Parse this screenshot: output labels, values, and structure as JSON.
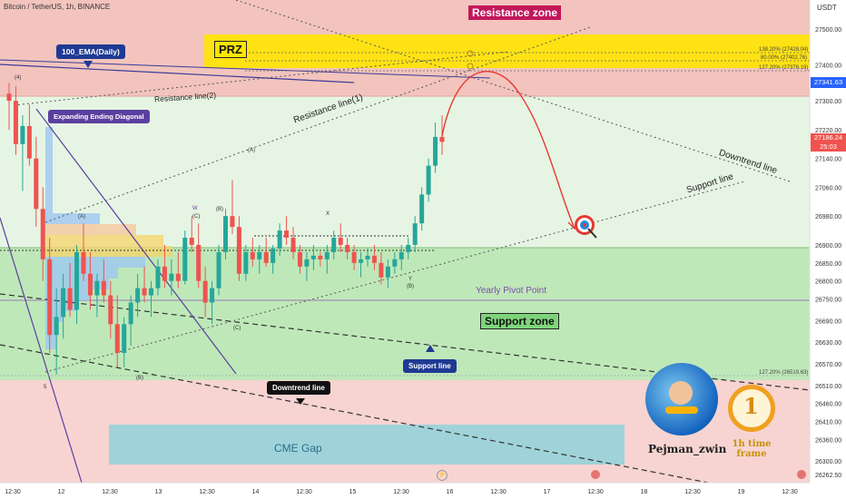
{
  "header": {
    "symbol_label": "Bitcoin / TetherUS, 1h, BINANCE"
  },
  "axis": {
    "currency": "USDT",
    "current_price": "27341.63",
    "last_price": "27186.24",
    "countdown": "25:03"
  },
  "colors": {
    "up": "#26a69a",
    "down": "#ef5350",
    "resistance_zone": "#f2c4bd",
    "support_zone": "#bfe8b9",
    "prz": "#ffe600",
    "cme_gap": "#9fd3d9",
    "label_dark": "#1f3a93",
    "price_marker": "#2962ff"
  },
  "annotations": {
    "resistance_zone": "Resistance zone",
    "prz": "PRZ",
    "ema": "100_EMA(Daily)",
    "resistance_line_2": "Resistance line(2)",
    "resistance_line_1": "Resistance line(1)",
    "expanding_diagonal": "Expanding Ending Diagonal",
    "downtrend_line_upper": "Downtrend line",
    "support_line_upper": "Support line",
    "yearly_pivot": "Yearly Pivot Point",
    "support_zone": "Support zone",
    "support_line_lower": "Support line",
    "downtrend_line_lower": "Downtrend line",
    "cme_gap": "CME Gap",
    "fib_1": "138.20% (27428.04)",
    "fib_2": "80.00% (27402.76)",
    "fib_3": "127.20% (27378.19)",
    "fib_4": "127.20% (26519.63)",
    "author": "Pejman_zwin",
    "timeframe": "1h time frame",
    "wave_4": "(4)",
    "wave_a1": "(A)",
    "wave_b1": "(B)",
    "wave_c1": "(C)",
    "wave_w": "W",
    "wave_x": "X",
    "wave_y": "Y",
    "wave_a2": "(A)",
    "wave_b2": "(B)",
    "wave_c2": "(C)",
    "wave_5": "5",
    "wave_b3": "(B)"
  },
  "chart_data": {
    "type": "candlestick",
    "title": "Bitcoin / TetherUS, 1h, BINANCE",
    "ylabel": "USDT",
    "ylim": [
      26240,
      27580
    ],
    "y_ticks": [
      27500,
      27400,
      27300,
      27220,
      27140,
      27060,
      26980,
      26900,
      26850,
      26800,
      26750,
      26690,
      26630,
      26570,
      26510,
      26460,
      26410,
      26360,
      26300,
      26262.5
    ],
    "y_tick_labels": [
      "27500.00",
      "27400.00",
      "27300.00",
      "27220.00",
      "27140.00",
      "27060.00",
      "26980.00",
      "26900.00",
      "26850.00",
      "26800.00",
      "26750.00",
      "26690.00",
      "26630.00",
      "26570.00",
      "26510.00",
      "26460.00",
      "26410.00",
      "26360.00",
      "26300.00",
      "26262.50"
    ],
    "x_ticks": [
      "12:30",
      "12",
      "12:30",
      "13",
      "12:30",
      "14",
      "12:30",
      "15",
      "12:30",
      "16",
      "12:30",
      "17",
      "12:30",
      "18",
      "12:30",
      "19",
      "12:30"
    ],
    "zones": {
      "resistance": [
        27300,
        27580
      ],
      "prz": [
        27370,
        27470
      ],
      "support": [
        26510,
        26890
      ],
      "cme_gap": [
        26290,
        26400
      ]
    },
    "pivot": 26745,
    "candles": [
      [
        27320,
        27350,
        27220,
        27300
      ],
      [
        27300,
        27340,
        27150,
        27180
      ],
      [
        27180,
        27260,
        27050,
        27230
      ],
      [
        27230,
        27290,
        27120,
        27140
      ],
      [
        27140,
        27200,
        26950,
        27000
      ],
      [
        27000,
        27060,
        26800,
        26860
      ],
      [
        26860,
        26920,
        26600,
        26650
      ],
      [
        26650,
        26780,
        26540,
        26700
      ],
      [
        26700,
        26820,
        26640,
        26780
      ],
      [
        26780,
        26850,
        26700,
        26720
      ],
      [
        26720,
        26900,
        26680,
        26880
      ],
      [
        26880,
        26960,
        26800,
        26820
      ],
      [
        26820,
        26880,
        26720,
        26760
      ],
      [
        26760,
        26820,
        26700,
        26800
      ],
      [
        26800,
        26860,
        26740,
        26760
      ],
      [
        26760,
        26800,
        26640,
        26680
      ],
      [
        26680,
        26760,
        26560,
        26600
      ],
      [
        26600,
        26700,
        26560,
        26680
      ],
      [
        26680,
        26760,
        26620,
        26740
      ],
      [
        26740,
        26820,
        26700,
        26780
      ],
      [
        26780,
        26840,
        26740,
        26760
      ],
      [
        26760,
        26800,
        26700,
        26780
      ],
      [
        26780,
        26860,
        26760,
        26840
      ],
      [
        26840,
        26900,
        26780,
        26800
      ],
      [
        26800,
        26860,
        26760,
        26820
      ],
      [
        26820,
        26880,
        26780,
        26800
      ],
      [
        26800,
        26940,
        26790,
        26920
      ],
      [
        26920,
        26980,
        26880,
        26900
      ],
      [
        26900,
        26960,
        26780,
        26800
      ],
      [
        26800,
        26840,
        26700,
        26740
      ],
      [
        26740,
        26800,
        26680,
        26780
      ],
      [
        26780,
        26900,
        26760,
        26880
      ],
      [
        26880,
        27000,
        26860,
        26980
      ],
      [
        26980,
        27080,
        26930,
        26950
      ],
      [
        26950,
        26980,
        26800,
        26820
      ],
      [
        26820,
        26900,
        26800,
        26880
      ],
      [
        26880,
        26920,
        26840,
        26860
      ],
      [
        26860,
        26900,
        26820,
        26880
      ],
      [
        26880,
        26920,
        26840,
        26850
      ],
      [
        26850,
        26900,
        26820,
        26890
      ],
      [
        26890,
        26960,
        26870,
        26940
      ],
      [
        26940,
        26980,
        26900,
        26920
      ],
      [
        26920,
        26950,
        26860,
        26880
      ],
      [
        26880,
        26900,
        26820,
        26840
      ],
      [
        26840,
        26880,
        26800,
        26860
      ],
      [
        26860,
        26900,
        26830,
        26870
      ],
      [
        26870,
        26880,
        26840,
        26860
      ],
      [
        26860,
        26900,
        26820,
        26880
      ],
      [
        26880,
        26940,
        26860,
        26920
      ],
      [
        26920,
        26960,
        26880,
        26900
      ],
      [
        26900,
        26920,
        26860,
        26880
      ],
      [
        26880,
        26900,
        26830,
        26850
      ],
      [
        26850,
        26880,
        26810,
        26860
      ],
      [
        26860,
        26890,
        26840,
        26870
      ],
      [
        26870,
        26900,
        26830,
        26850
      ],
      [
        26850,
        26880,
        26790,
        26810
      ],
      [
        26810,
        26860,
        26780,
        26840
      ],
      [
        26840,
        26880,
        26820,
        26860
      ],
      [
        26860,
        26900,
        26830,
        26880
      ],
      [
        26880,
        26920,
        26860,
        26900
      ],
      [
        26900,
        26980,
        26880,
        26960
      ],
      [
        26960,
        27060,
        26940,
        27040
      ],
      [
        27040,
        27140,
        27020,
        27120
      ],
      [
        27120,
        27240,
        27100,
        27200
      ],
      [
        27200,
        27260,
        27150,
        27186
      ]
    ]
  }
}
